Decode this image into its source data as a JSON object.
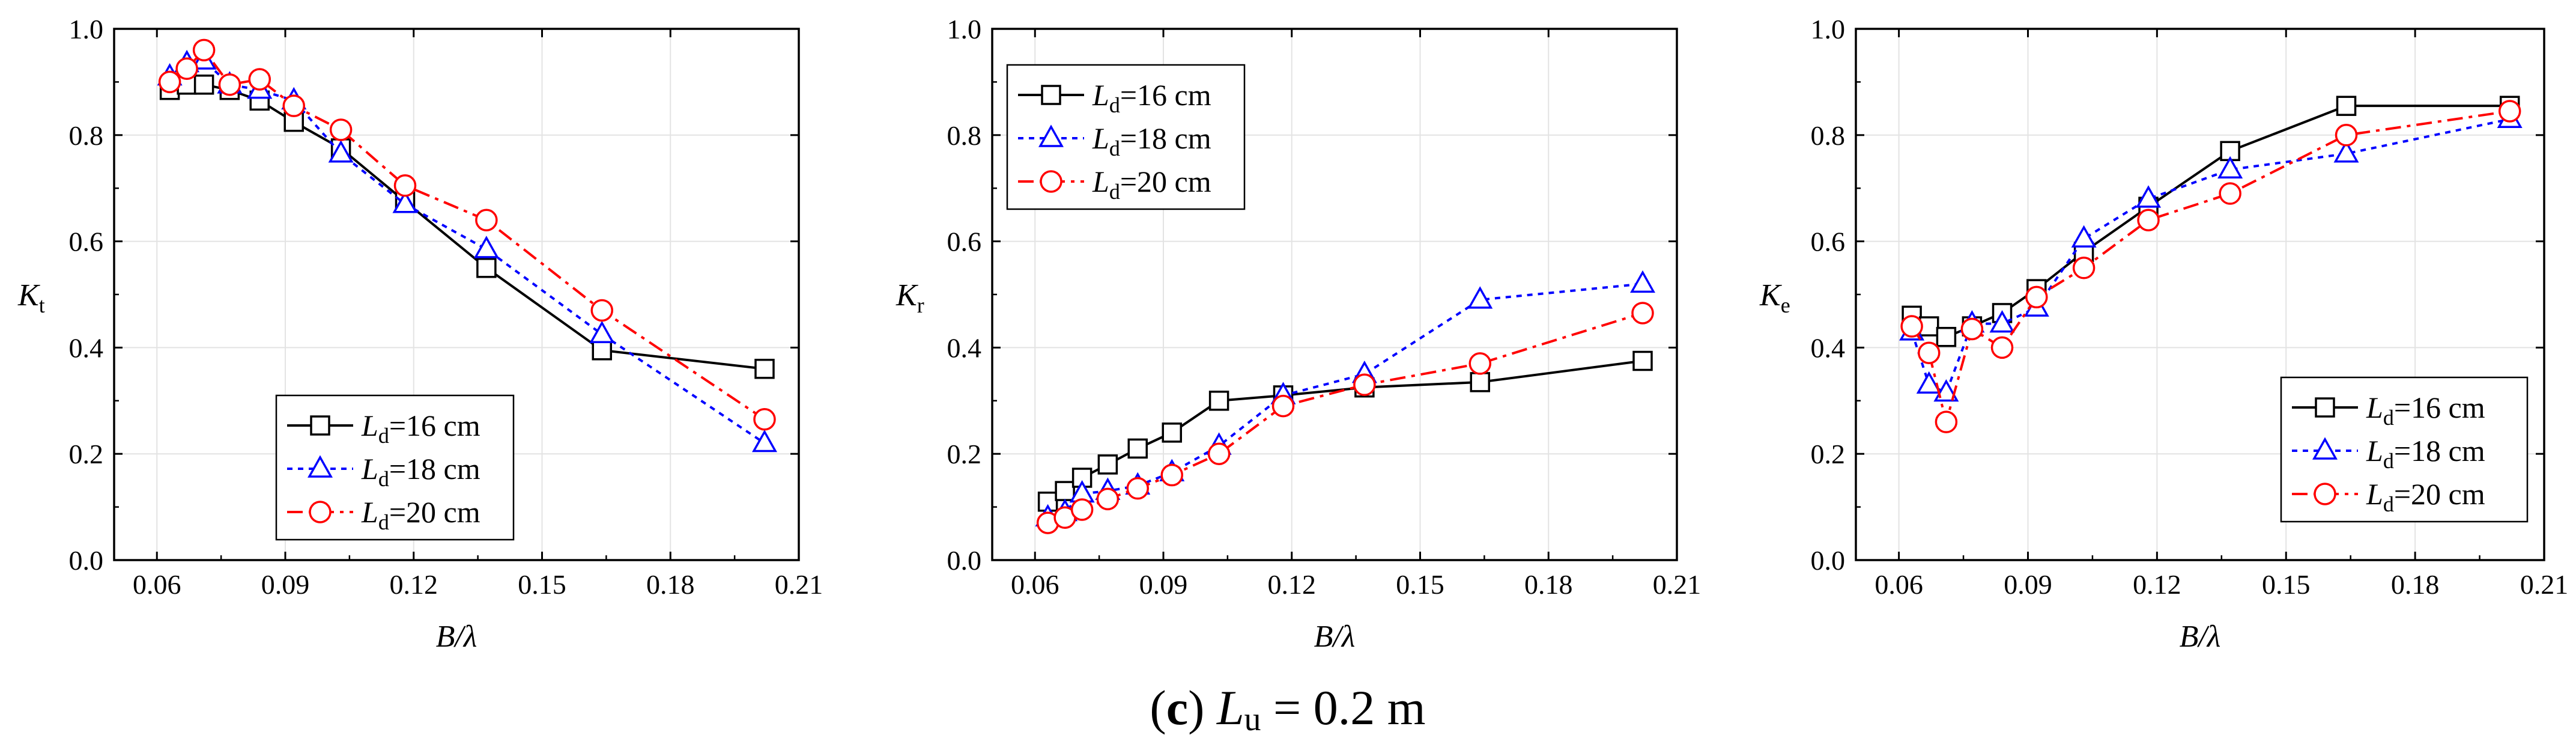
{
  "caption": {
    "prefix": "(",
    "letter": "c",
    "suffix": ") ",
    "var_main": "L",
    "var_sub": "u",
    "rest": " = 0.2 m"
  },
  "legend_labels": [
    {
      "main": "L",
      "sub": "d",
      "rest": "=16 cm"
    },
    {
      "main": "L",
      "sub": "d",
      "rest": "=18 cm"
    },
    {
      "main": "L",
      "sub": "d",
      "rest": "=20 cm"
    }
  ],
  "series_style": [
    {
      "color": "#000000",
      "marker": "square",
      "dash": "solid"
    },
    {
      "color": "#0000ff",
      "marker": "triangle",
      "dash": "dotted"
    },
    {
      "color": "#ff0000",
      "marker": "circle",
      "dash": "dashdot"
    }
  ],
  "chart_data": [
    {
      "type": "line",
      "title": "",
      "xlabel": "B/λ",
      "ylabel": {
        "main": "K",
        "sub": "t"
      },
      "xlim": [
        0.05,
        0.21
      ],
      "ylim": [
        0.0,
        1.0
      ],
      "xticks": [
        0.06,
        0.09,
        0.12,
        0.15,
        0.18,
        0.21
      ],
      "xtick_labels": [
        "0.06",
        "0.09",
        "0.12",
        "0.15",
        "0.18",
        "0.21"
      ],
      "yticks": [
        0.0,
        0.2,
        0.4,
        0.6,
        0.8,
        1.0
      ],
      "ytick_labels": [
        "0.0",
        "0.2",
        "0.4",
        "0.6",
        "0.8",
        "1.0"
      ],
      "grid": true,
      "legend_position": "bottom-left",
      "series": [
        {
          "name": "Ld=16 cm",
          "x": [
            0.063,
            0.067,
            0.071,
            0.077,
            0.084,
            0.092,
            0.103,
            0.118,
            0.137,
            0.164,
            0.202
          ],
          "y": [
            0.885,
            0.895,
            0.895,
            0.885,
            0.865,
            0.825,
            0.775,
            0.675,
            0.55,
            0.395,
            0.36
          ]
        },
        {
          "name": "Ld=18 cm",
          "x": [
            0.063,
            0.067,
            0.071,
            0.077,
            0.084,
            0.092,
            0.103,
            0.118,
            0.137,
            0.164,
            0.202
          ],
          "y": [
            0.91,
            0.935,
            0.94,
            0.895,
            0.885,
            0.865,
            0.765,
            0.67,
            0.585,
            0.425,
            0.22
          ]
        },
        {
          "name": "Ld=20 cm",
          "x": [
            0.063,
            0.067,
            0.071,
            0.077,
            0.084,
            0.092,
            0.103,
            0.118,
            0.137,
            0.164,
            0.202
          ],
          "y": [
            0.9,
            0.925,
            0.96,
            0.895,
            0.905,
            0.855,
            0.81,
            0.705,
            0.64,
            0.47,
            0.265
          ]
        }
      ]
    },
    {
      "type": "line",
      "title": "",
      "xlabel": "B/λ",
      "ylabel": {
        "main": "K",
        "sub": "r"
      },
      "xlim": [
        0.05,
        0.21
      ],
      "ylim": [
        0.0,
        1.0
      ],
      "xticks": [
        0.06,
        0.09,
        0.12,
        0.15,
        0.18,
        0.21
      ],
      "xtick_labels": [
        "0.06",
        "0.09",
        "0.12",
        "0.15",
        "0.18",
        "0.21"
      ],
      "yticks": [
        0.0,
        0.2,
        0.4,
        0.6,
        0.8,
        1.0
      ],
      "ytick_labels": [
        "0.0",
        "0.2",
        "0.4",
        "0.6",
        "0.8",
        "1.0"
      ],
      "grid": true,
      "legend_position": "top-left",
      "series": [
        {
          "name": "Ld=16 cm",
          "x": [
            0.063,
            0.067,
            0.071,
            0.077,
            0.084,
            0.092,
            0.103,
            0.118,
            0.137,
            0.164,
            0.202
          ],
          "y": [
            0.11,
            0.13,
            0.155,
            0.18,
            0.21,
            0.24,
            0.3,
            0.31,
            0.325,
            0.335,
            0.375
          ]
        },
        {
          "name": "Ld=18 cm",
          "x": [
            0.063,
            0.067,
            0.071,
            0.077,
            0.084,
            0.092,
            0.103,
            0.118,
            0.137,
            0.164,
            0.202
          ],
          "y": [
            0.08,
            0.09,
            0.125,
            0.13,
            0.14,
            0.165,
            0.215,
            0.31,
            0.35,
            0.49,
            0.52
          ]
        },
        {
          "name": "Ld=20 cm",
          "x": [
            0.063,
            0.067,
            0.071,
            0.077,
            0.084,
            0.092,
            0.103,
            0.118,
            0.137,
            0.164,
            0.202
          ],
          "y": [
            0.07,
            0.08,
            0.095,
            0.115,
            0.135,
            0.16,
            0.2,
            0.29,
            0.33,
            0.37,
            0.465
          ]
        }
      ]
    },
    {
      "type": "line",
      "title": "",
      "xlabel": "B/λ",
      "ylabel": {
        "main": "K",
        "sub": "e"
      },
      "xlim": [
        0.05,
        0.21
      ],
      "ylim": [
        0.0,
        1.0
      ],
      "xticks": [
        0.06,
        0.09,
        0.12,
        0.15,
        0.18,
        0.21
      ],
      "xtick_labels": [
        "0.06",
        "0.09",
        "0.12",
        "0.15",
        "0.18",
        "0.21"
      ],
      "yticks": [
        0.0,
        0.2,
        0.4,
        0.6,
        0.8,
        1.0
      ],
      "ytick_labels": [
        "0.0",
        "0.2",
        "0.4",
        "0.6",
        "0.8",
        "1.0"
      ],
      "grid": true,
      "legend_position": "bottom-right",
      "series": [
        {
          "name": "Ld=16 cm",
          "x": [
            0.063,
            0.067,
            0.071,
            0.077,
            0.084,
            0.092,
            0.103,
            0.118,
            0.137,
            0.164,
            0.202
          ],
          "y": [
            0.46,
            0.44,
            0.42,
            0.44,
            0.465,
            0.51,
            0.58,
            0.665,
            0.77,
            0.855,
            0.855
          ]
        },
        {
          "name": "Ld=18 cm",
          "x": [
            0.063,
            0.067,
            0.071,
            0.077,
            0.084,
            0.092,
            0.103,
            0.118,
            0.137,
            0.164,
            0.202
          ],
          "y": [
            0.43,
            0.33,
            0.315,
            0.445,
            0.445,
            0.475,
            0.605,
            0.68,
            0.735,
            0.765,
            0.83
          ]
        },
        {
          "name": "Ld=20 cm",
          "x": [
            0.063,
            0.067,
            0.071,
            0.077,
            0.084,
            0.092,
            0.103,
            0.118,
            0.137,
            0.164,
            0.202
          ],
          "y": [
            0.44,
            0.39,
            0.26,
            0.435,
            0.4,
            0.495,
            0.55,
            0.64,
            0.69,
            0.8,
            0.845
          ]
        }
      ]
    }
  ]
}
